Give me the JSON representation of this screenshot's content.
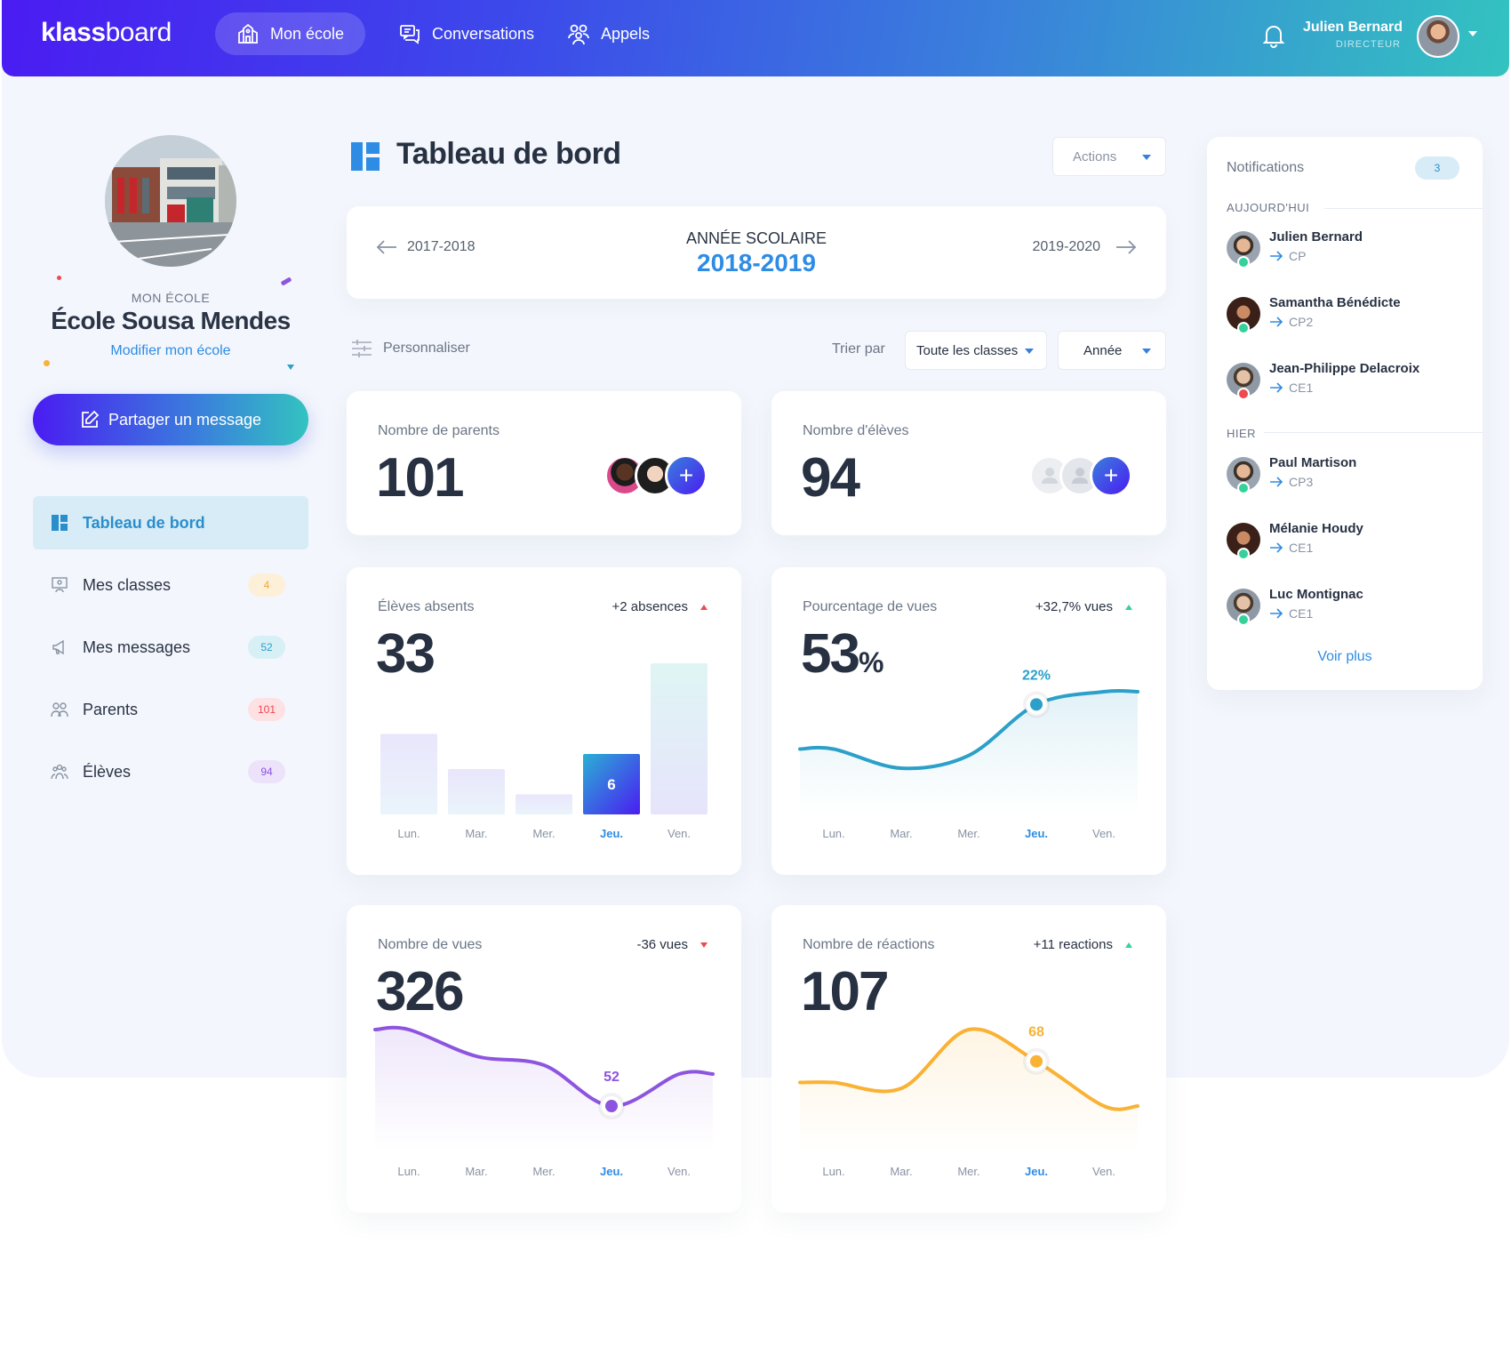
{
  "app": {
    "logo_bold": "klass",
    "logo_light": "board"
  },
  "topnav": [
    {
      "label": "Mon école",
      "icon": "school-icon",
      "active": true
    },
    {
      "label": "Conversations",
      "icon": "chat-icon"
    },
    {
      "label": "Appels",
      "icon": "group-icon"
    }
  ],
  "user": {
    "name": "Julien Bernard",
    "role": "DIRECTEUR"
  },
  "school": {
    "kicker": "MON ÉCOLE",
    "name": "École Sousa Mendes",
    "edit_label": "Modifier mon école"
  },
  "share_label": "Partager un message",
  "sidebar": [
    {
      "label": "Tableau de bord",
      "icon": "dashboard-icon",
      "active": true,
      "badge": ""
    },
    {
      "label": "Mes classes",
      "icon": "classroom-icon",
      "badge": "4"
    },
    {
      "label": "Mes messages",
      "icon": "megaphone-icon",
      "badge": "52"
    },
    {
      "label": "Parents",
      "icon": "parents-icon",
      "badge": "101"
    },
    {
      "label": "Élèves",
      "icon": "students-icon",
      "badge": "94"
    }
  ],
  "page": {
    "title": "Tableau de bord",
    "actions_label": "Actions"
  },
  "year": {
    "kicker": "ANNÉE SCOLAIRE",
    "current": "2018-2019",
    "prev": "2017-2018",
    "next": "2019-2020"
  },
  "filters": {
    "customize_label": "Personnaliser",
    "sort_label": "Trier par",
    "classes_value": "Toute les classes",
    "period_value": "Année"
  },
  "cards": {
    "parents": {
      "label": "Nombre de parents",
      "value": "101"
    },
    "students": {
      "label": "Nombre d'élèves",
      "value": "94"
    },
    "absent": {
      "label": "Élèves absents",
      "value": "33",
      "delta": "+2 absences"
    },
    "views_pct": {
      "label": "Pourcentage de vues",
      "value": "53",
      "unit": "%",
      "delta": "+32,7% vues"
    },
    "views": {
      "label": "Nombre de vues",
      "value": "326",
      "delta": "-36 vues"
    },
    "reactions": {
      "label": "Nombre de réactions",
      "value": "107",
      "delta": "+11 reactions"
    }
  },
  "chart_data": [
    {
      "type": "bar",
      "chart": "absent",
      "categories": [
        "Lun.",
        "Mar.",
        "Mer.",
        "Jeu.",
        "Ven."
      ],
      "values": [
        8,
        4.5,
        2,
        6,
        15
      ],
      "highlight_index": 3,
      "highlight_label": "6"
    },
    {
      "type": "area",
      "chart": "views_pct",
      "categories": [
        "Lun.",
        "Mar.",
        "Mer.",
        "Jeu.",
        "Ven."
      ],
      "values": [
        8,
        2,
        6,
        22,
        26
      ],
      "highlight_index": 3,
      "highlight_label": "22%"
    },
    {
      "type": "area",
      "chart": "views",
      "categories": [
        "Lun.",
        "Mar.",
        "Mer.",
        "Jeu.",
        "Ven."
      ],
      "values": [
        95,
        80,
        75,
        52,
        70
      ],
      "highlight_index": 3,
      "highlight_label": "52"
    },
    {
      "type": "area",
      "chart": "reactions",
      "categories": [
        "Lun.",
        "Mar.",
        "Mer.",
        "Jeu.",
        "Ven."
      ],
      "values": [
        50,
        45,
        95,
        68,
        30
      ],
      "highlight_index": 3,
      "highlight_label": "68"
    }
  ],
  "notifications": {
    "title": "Notifications",
    "count": "3",
    "today_label": "AUJOURD'HUI",
    "yesterday_label": "HIER",
    "more_label": "Voir plus",
    "today": [
      {
        "name": "Julien Bernard",
        "class": "CP",
        "status": "ok"
      },
      {
        "name": "Samantha Bénédicte",
        "class": "CP2",
        "status": "ok"
      },
      {
        "name": "Jean-Philippe Delacroix",
        "class": "CE1",
        "status": "error"
      }
    ],
    "yesterday": [
      {
        "name": "Paul Martison",
        "class": "CP3",
        "status": "ok"
      },
      {
        "name": "Mélanie Houdy",
        "class": "CE1",
        "status": "ok"
      },
      {
        "name": "Luc Montignac",
        "class": "CE1",
        "status": "ok"
      }
    ]
  },
  "colors": {
    "accent_blue": "#2e8ce4",
    "purple": "#8d55df",
    "orange": "#f9b234",
    "teal": "#2ca0c9",
    "up": "#36d19a",
    "down": "#f0484f"
  }
}
